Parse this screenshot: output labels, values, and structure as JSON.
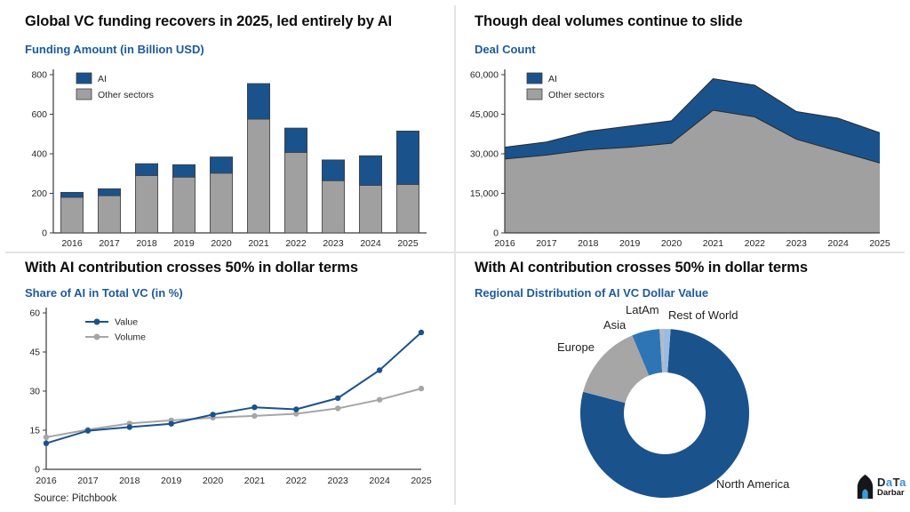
{
  "source": "Source: Pitchbook",
  "logo": {
    "d1": "D",
    "a1": "a",
    "t": "T",
    "a2": "a",
    "name": "Darbar"
  },
  "colors": {
    "ai_blue": "#1a528c",
    "other_gray": "#a0a0a0",
    "accent_text_blue": "#1d5a9b",
    "axis_dark": "#3a3a3a"
  },
  "chart_data": [
    {
      "id": "funding",
      "type": "bar",
      "stacked": true,
      "title": "Global VC funding recovers in 2025, led entirely by AI",
      "subtitle": "Funding Amount (in Billion USD)",
      "categories": [
        "2016",
        "2017",
        "2018",
        "2019",
        "2020",
        "2021",
        "2022",
        "2023",
        "2024",
        "2025"
      ],
      "series": [
        {
          "name": "AI",
          "color": "#1a528c",
          "values": [
            25,
            35,
            60,
            63,
            82,
            180,
            123,
            105,
            150,
            270
          ]
        },
        {
          "name": "Other sectors",
          "color": "#a0a0a0",
          "values": [
            180,
            188,
            290,
            282,
            302,
            575,
            407,
            264,
            240,
            245
          ]
        }
      ],
      "ylim": [
        0,
        800
      ],
      "yticks": [
        0,
        200,
        400,
        600,
        800
      ],
      "legend_position": "top-left",
      "grid": false
    },
    {
      "id": "deals",
      "type": "area",
      "stacked": true,
      "title": "Though deal volumes continue to slide",
      "subtitle": "Deal Count",
      "categories": [
        "2016",
        "2017",
        "2018",
        "2019",
        "2020",
        "2021",
        "2022",
        "2023",
        "2024",
        "2025"
      ],
      "series": [
        {
          "name": "AI",
          "color": "#1a528c",
          "values": [
            4500,
            5000,
            7000,
            8000,
            8500,
            12000,
            12000,
            10500,
            12500,
            11500
          ]
        },
        {
          "name": "Other sectors",
          "color": "#a0a0a0",
          "values": [
            28000,
            29500,
            31500,
            32500,
            34000,
            46500,
            44000,
            35500,
            31000,
            26500
          ]
        }
      ],
      "ylim": [
        0,
        60000
      ],
      "yticks": [
        0,
        15000,
        30000,
        45000,
        60000
      ],
      "legend_position": "top-left",
      "grid": false
    },
    {
      "id": "share",
      "type": "line",
      "title": "With AI contribution crosses 50% in dollar terms",
      "subtitle": "Share of AI in Total VC (in %)",
      "categories": [
        "2016",
        "2017",
        "2018",
        "2019",
        "2020",
        "2021",
        "2022",
        "2023",
        "2024",
        "2025"
      ],
      "series": [
        {
          "name": "Value",
          "color": "#1a528c",
          "values": [
            10,
            14.8,
            16.2,
            17.5,
            21,
            23.8,
            23,
            27.3,
            38,
            52.5
          ]
        },
        {
          "name": "Volume",
          "color": "#a6a6a6",
          "values": [
            12.3,
            15.2,
            17.6,
            18.8,
            19.8,
            20.5,
            21.3,
            23.4,
            26.7,
            31
          ]
        }
      ],
      "ylim": [
        0,
        60
      ],
      "yticks": [
        0,
        15,
        30,
        45,
        60
      ],
      "legend_position": "top-left",
      "grid": false
    },
    {
      "id": "regional",
      "type": "pie",
      "donut": true,
      "title": "With AI contribution crosses 50% in dollar terms",
      "subtitle": "Regional Distribution of AI VC Dollar Value",
      "labels": [
        "North America",
        "Europe",
        "Asia",
        "LatAm",
        "Rest of World"
      ],
      "values": [
        78,
        14.6,
        5.3,
        0.7,
        1.4
      ],
      "colors": [
        "#1a528c",
        "#a6a6a6",
        "#2e75b6",
        "#b3bac2",
        "#9bbcdf"
      ],
      "start_angle_deg": 4
    }
  ]
}
